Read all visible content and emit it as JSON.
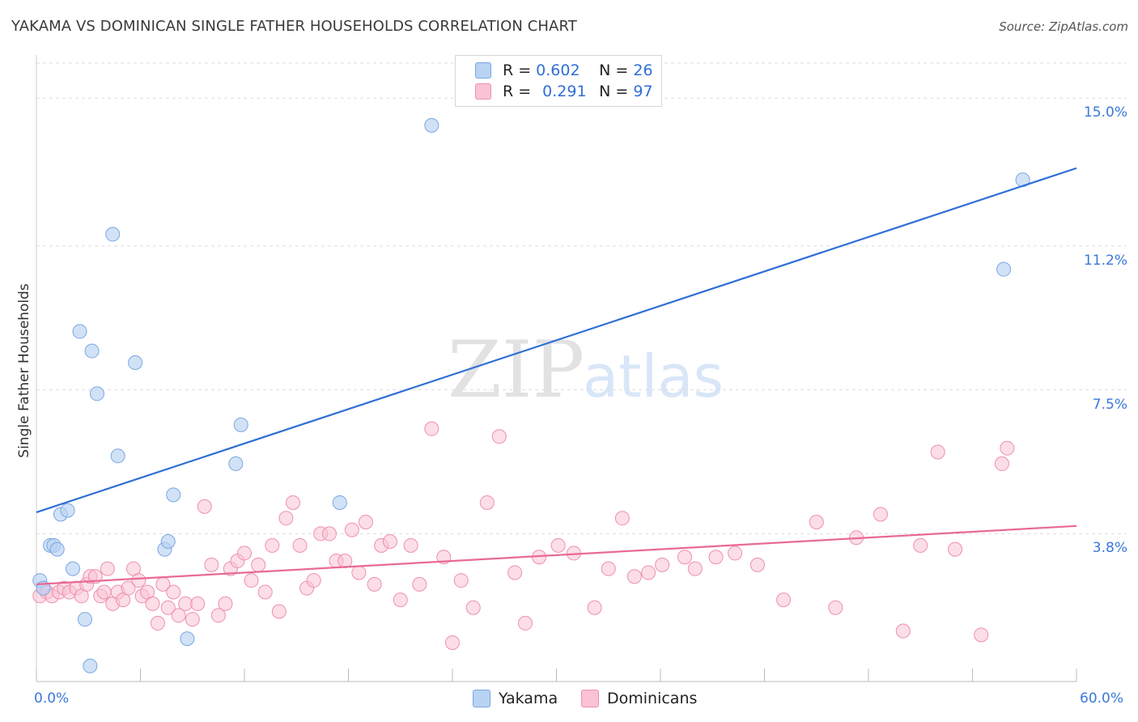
{
  "title": "YAKAMA VS DOMINICAN SINGLE FATHER HOUSEHOLDS CORRELATION CHART",
  "source": "Source: ZipAtlas.com",
  "watermark": {
    "zip": "ZIP",
    "atlas": "atlas"
  },
  "legend": {
    "rows": [
      {
        "r_label": "R =",
        "r_value": "0.602",
        "n_label": "N =",
        "n_value": "26"
      },
      {
        "r_label": "R =",
        "r_value": "0.291",
        "n_label": "N =",
        "n_value": "97"
      }
    ]
  },
  "bottom_legend": [
    "Yakama",
    "Dominicans"
  ],
  "colors": {
    "yakama_fill": "#b9d3f3",
    "yakama_stroke": "#7aa7e0",
    "yakama_line": "#2f6fd6",
    "dominican_fill": "#f9c3d3",
    "dominican_stroke": "#ee8fae",
    "dominican_line": "#e86a95",
    "grid": "#dddddd",
    "tick_label": "#3a78d8"
  },
  "chart_data": {
    "type": "scatter",
    "title": "YAKAMA VS DOMINICAN SINGLE FATHER HOUSEHOLDS CORRELATION CHART",
    "xlabel": "",
    "ylabel": "Single Father Households",
    "xlim": [
      0,
      60
    ],
    "ylim": [
      0,
      15.9
    ],
    "x_tick_labels": [
      "0.0%",
      "60.0%"
    ],
    "y_ticks": [
      3.8,
      7.5,
      11.2,
      15.0
    ],
    "y_tick_labels": [
      "3.8%",
      "7.5%",
      "11.2%",
      "15.0%"
    ],
    "series": [
      {
        "name": "Yakama",
        "R": 0.602,
        "N": 26,
        "trend": {
          "x": [
            0,
            60
          ],
          "y": [
            4.35,
            13.2
          ]
        },
        "points": [
          [
            0.2,
            2.6
          ],
          [
            0.4,
            2.4
          ],
          [
            0.8,
            3.5
          ],
          [
            1.0,
            3.5
          ],
          [
            1.2,
            3.4
          ],
          [
            1.4,
            4.3
          ],
          [
            1.8,
            4.4
          ],
          [
            2.1,
            2.9
          ],
          [
            2.5,
            9.0
          ],
          [
            2.8,
            1.6
          ],
          [
            3.1,
            0.4
          ],
          [
            3.2,
            8.5
          ],
          [
            3.5,
            7.4
          ],
          [
            4.4,
            11.5
          ],
          [
            4.7,
            5.8
          ],
          [
            5.7,
            8.2
          ],
          [
            7.4,
            3.4
          ],
          [
            7.6,
            3.6
          ],
          [
            7.9,
            4.8
          ],
          [
            8.7,
            1.1
          ],
          [
            11.5,
            5.6
          ],
          [
            11.8,
            6.6
          ],
          [
            17.5,
            4.6
          ],
          [
            22.8,
            14.3
          ],
          [
            55.8,
            10.6
          ],
          [
            56.9,
            12.9
          ]
        ]
      },
      {
        "name": "Dominicans",
        "R": 0.291,
        "N": 97,
        "trend": {
          "x": [
            0,
            60
          ],
          "y": [
            2.5,
            4.0
          ]
        },
        "points": [
          [
            0.2,
            2.2
          ],
          [
            0.4,
            2.4
          ],
          [
            0.6,
            2.3
          ],
          [
            0.9,
            2.2
          ],
          [
            1.3,
            2.3
          ],
          [
            1.6,
            2.4
          ],
          [
            1.9,
            2.3
          ],
          [
            2.3,
            2.4
          ],
          [
            2.6,
            2.2
          ],
          [
            2.9,
            2.5
          ],
          [
            3.1,
            2.7
          ],
          [
            3.4,
            2.7
          ],
          [
            3.7,
            2.2
          ],
          [
            3.9,
            2.3
          ],
          [
            4.1,
            2.9
          ],
          [
            4.4,
            2.0
          ],
          [
            4.7,
            2.3
          ],
          [
            5.0,
            2.1
          ],
          [
            5.3,
            2.4
          ],
          [
            5.6,
            2.9
          ],
          [
            5.9,
            2.6
          ],
          [
            6.1,
            2.2
          ],
          [
            6.4,
            2.3
          ],
          [
            6.7,
            2.0
          ],
          [
            7.0,
            1.5
          ],
          [
            7.3,
            2.5
          ],
          [
            7.6,
            1.9
          ],
          [
            7.9,
            2.3
          ],
          [
            8.2,
            1.7
          ],
          [
            8.6,
            2.0
          ],
          [
            9.0,
            1.6
          ],
          [
            9.3,
            2.0
          ],
          [
            9.7,
            4.5
          ],
          [
            10.1,
            3.0
          ],
          [
            10.5,
            1.7
          ],
          [
            10.9,
            2.0
          ],
          [
            11.2,
            2.9
          ],
          [
            11.6,
            3.1
          ],
          [
            12.0,
            3.3
          ],
          [
            12.4,
            2.6
          ],
          [
            12.8,
            3.0
          ],
          [
            13.2,
            2.3
          ],
          [
            13.6,
            3.5
          ],
          [
            14.0,
            1.8
          ],
          [
            14.4,
            4.2
          ],
          [
            14.8,
            4.6
          ],
          [
            15.2,
            3.5
          ],
          [
            15.6,
            2.4
          ],
          [
            16.0,
            2.6
          ],
          [
            16.4,
            3.8
          ],
          [
            16.9,
            3.8
          ],
          [
            17.3,
            3.1
          ],
          [
            17.8,
            3.1
          ],
          [
            18.2,
            3.9
          ],
          [
            18.6,
            2.8
          ],
          [
            19.0,
            4.1
          ],
          [
            19.5,
            2.5
          ],
          [
            19.9,
            3.5
          ],
          [
            20.4,
            3.6
          ],
          [
            21.0,
            2.1
          ],
          [
            21.6,
            3.5
          ],
          [
            22.1,
            2.5
          ],
          [
            22.8,
            6.5
          ],
          [
            23.5,
            3.2
          ],
          [
            24.0,
            1.0
          ],
          [
            24.5,
            2.6
          ],
          [
            25.2,
            1.9
          ],
          [
            26.0,
            4.6
          ],
          [
            26.7,
            6.3
          ],
          [
            27.6,
            2.8
          ],
          [
            28.2,
            1.5
          ],
          [
            29.0,
            3.2
          ],
          [
            30.1,
            3.5
          ],
          [
            31.0,
            3.3
          ],
          [
            32.2,
            1.9
          ],
          [
            33.0,
            2.9
          ],
          [
            33.8,
            4.2
          ],
          [
            34.5,
            2.7
          ],
          [
            35.3,
            2.8
          ],
          [
            36.1,
            3.0
          ],
          [
            37.4,
            3.2
          ],
          [
            38.0,
            2.9
          ],
          [
            39.2,
            3.2
          ],
          [
            40.3,
            3.3
          ],
          [
            41.6,
            3.0
          ],
          [
            43.1,
            2.1
          ],
          [
            45.0,
            4.1
          ],
          [
            46.1,
            1.9
          ],
          [
            47.3,
            3.7
          ],
          [
            48.7,
            4.3
          ],
          [
            50.0,
            1.3
          ],
          [
            51.0,
            3.5
          ],
          [
            52.0,
            5.9
          ],
          [
            53.0,
            3.4
          ],
          [
            54.5,
            1.2
          ],
          [
            55.7,
            5.6
          ],
          [
            56.0,
            6.0
          ]
        ]
      }
    ]
  }
}
